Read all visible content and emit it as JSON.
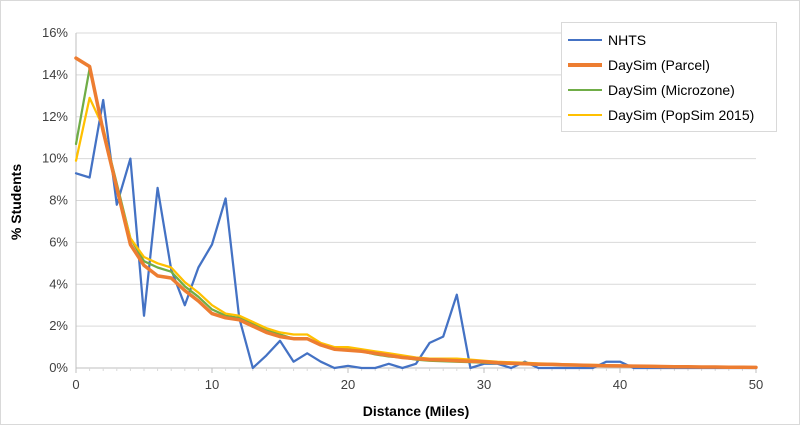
{
  "chart_data": {
    "type": "line",
    "title": "",
    "xlabel": "Distance (Miles)",
    "ylabel": "% Students",
    "xlim": [
      0,
      50
    ],
    "ylim": [
      0,
      16
    ],
    "x_ticks": [
      "0",
      "10",
      "20",
      "30",
      "40",
      "50"
    ],
    "y_ticks": [
      "0%",
      "2%",
      "4%",
      "6%",
      "8%",
      "10%",
      "12%",
      "14%",
      "16%"
    ],
    "grid": "horizontal",
    "legend_position": "top-right",
    "series": [
      {
        "name": "NHTS",
        "color": "#4472c4",
        "x": [
          0,
          1,
          2,
          3,
          4,
          5,
          6,
          7,
          8,
          9,
          10,
          11,
          12,
          13,
          14,
          15,
          16,
          17,
          18,
          19,
          20,
          21,
          22,
          23,
          24,
          25,
          26,
          27,
          28,
          29,
          30,
          31,
          32,
          33,
          34,
          35,
          36,
          37,
          38,
          39,
          40,
          41,
          42,
          43,
          44,
          45,
          46,
          47,
          48,
          49,
          50
        ],
        "y": [
          9.3,
          9.1,
          12.8,
          7.8,
          10.0,
          2.5,
          8.6,
          4.7,
          3.0,
          4.8,
          5.9,
          8.1,
          2.4,
          0.0,
          0.6,
          1.3,
          0.3,
          0.7,
          0.3,
          0.0,
          0.1,
          0.0,
          0.0,
          0.2,
          0.0,
          0.2,
          1.2,
          1.5,
          3.5,
          0.0,
          0.2,
          0.2,
          0.0,
          0.3,
          0.0,
          0.0,
          0.0,
          0.0,
          0.0,
          0.3,
          0.3,
          0.0,
          0.0,
          0.0,
          0.0,
          0.0,
          0.0,
          0.0,
          0.0,
          0.0,
          0.0
        ]
      },
      {
        "name": "DaySim (Parcel)",
        "color": "#ed7d31",
        "x": [
          0,
          1,
          2,
          3,
          4,
          5,
          6,
          7,
          8,
          9,
          10,
          11,
          12,
          13,
          14,
          15,
          16,
          17,
          18,
          19,
          20,
          21,
          22,
          23,
          24,
          25,
          26,
          27,
          28,
          29,
          30,
          31,
          32,
          33,
          34,
          35,
          36,
          37,
          38,
          39,
          40,
          41,
          42,
          43,
          44,
          45,
          46,
          47,
          48,
          49,
          50
        ],
        "y": [
          14.8,
          14.4,
          11.3,
          8.6,
          5.9,
          4.9,
          4.4,
          4.3,
          3.7,
          3.2,
          2.6,
          2.4,
          2.3,
          2.0,
          1.7,
          1.5,
          1.4,
          1.4,
          1.1,
          0.9,
          0.85,
          0.8,
          0.7,
          0.6,
          0.5,
          0.45,
          0.4,
          0.38,
          0.35,
          0.32,
          0.3,
          0.25,
          0.22,
          0.2,
          0.18,
          0.17,
          0.15,
          0.14,
          0.12,
          0.11,
          0.1,
          0.09,
          0.08,
          0.07,
          0.06,
          0.06,
          0.05,
          0.05,
          0.04,
          0.04,
          0.03
        ]
      },
      {
        "name": "DaySim (Microzone)",
        "color": "#70ad47",
        "x": [
          0,
          1,
          2,
          3,
          4,
          5,
          6,
          7,
          8,
          9,
          10,
          11,
          12,
          13,
          14,
          15,
          16,
          17,
          18,
          19,
          20,
          21,
          22,
          23,
          24,
          25,
          26,
          27,
          28,
          29,
          30,
          31,
          32,
          33,
          34,
          35,
          36,
          37,
          38,
          39,
          40,
          41,
          42,
          43,
          44,
          45,
          46,
          47,
          48,
          49,
          50
        ],
        "y": [
          10.7,
          14.3,
          11.4,
          8.8,
          6.2,
          5.1,
          4.8,
          4.6,
          3.9,
          3.4,
          2.8,
          2.5,
          2.4,
          2.1,
          1.8,
          1.6,
          1.4,
          1.4,
          1.1,
          0.9,
          0.9,
          0.8,
          0.65,
          0.55,
          0.5,
          0.4,
          0.35,
          0.32,
          0.3,
          0.28,
          0.25,
          0.22,
          0.2,
          0.18,
          0.16,
          0.15,
          0.13,
          0.12,
          0.11,
          0.1,
          0.09,
          0.08,
          0.07,
          0.06,
          0.05,
          0.05,
          0.04,
          0.04,
          0.03,
          0.03,
          0.03
        ]
      },
      {
        "name": "DaySim (PopSim 2015)",
        "color": "#ffc000",
        "x": [
          0,
          1,
          2,
          3,
          4,
          5,
          6,
          7,
          8,
          9,
          10,
          11,
          12,
          13,
          14,
          15,
          16,
          17,
          18,
          19,
          20,
          21,
          22,
          23,
          24,
          25,
          26,
          27,
          28,
          29,
          30,
          31,
          32,
          33,
          34,
          35,
          36,
          37,
          38,
          39,
          40,
          41,
          42,
          43,
          44,
          45,
          46,
          47,
          48,
          49,
          50
        ],
        "y": [
          9.9,
          12.9,
          11.5,
          8.6,
          6.2,
          5.3,
          5.0,
          4.8,
          4.1,
          3.6,
          3.0,
          2.6,
          2.5,
          2.2,
          1.9,
          1.7,
          1.6,
          1.6,
          1.2,
          1.0,
          1.0,
          0.9,
          0.8,
          0.7,
          0.6,
          0.5,
          0.45,
          0.45,
          0.45,
          0.4,
          0.35,
          0.3,
          0.27,
          0.25,
          0.22,
          0.2,
          0.18,
          0.16,
          0.15,
          0.13,
          0.12,
          0.11,
          0.1,
          0.09,
          0.08,
          0.07,
          0.06,
          0.05,
          0.05,
          0.04,
          0.04
        ]
      }
    ]
  }
}
